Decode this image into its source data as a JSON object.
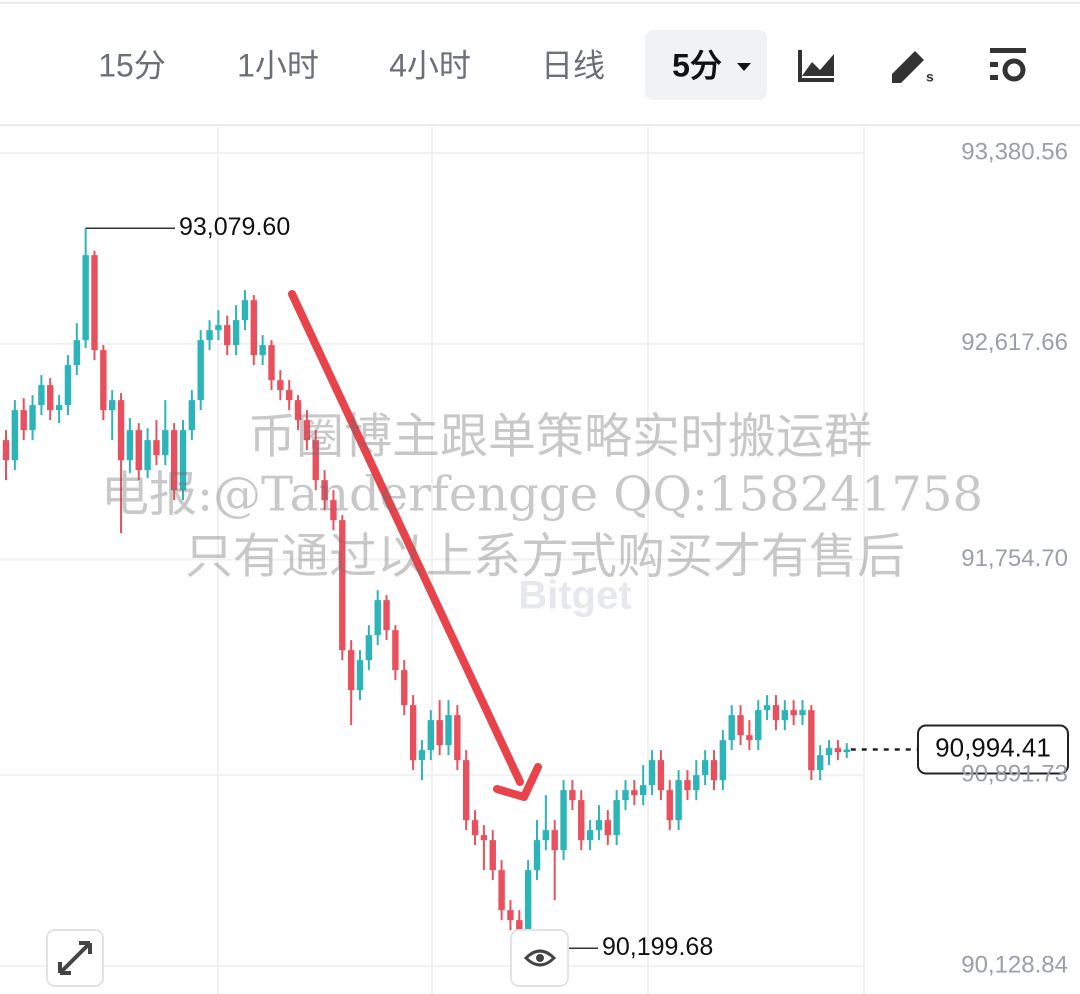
{
  "toolbar": {
    "tabs": [
      "15分",
      "1小时",
      "4小时",
      "日线"
    ],
    "active": "5分"
  },
  "watermark": {
    "lines": [
      "币圈博主跟单策略实时搬运群",
      "电报:@Tanderfengge QQ:158241758",
      "只有通过以上系方式购买才有售后"
    ],
    "brand": "Bitget"
  },
  "chart_data": {
    "type": "candlestick",
    "up_color": "#2bb5b8",
    "down_color": "#e9505e",
    "ylim": [
      90016.56,
      93492.56
    ],
    "yticks": [
      {
        "value": 93380.56,
        "label": "93,380.56"
      },
      {
        "value": 92617.66,
        "label": "92,617.66"
      },
      {
        "value": 91754.7,
        "label": "91,754.70"
      },
      {
        "value": 90891.73,
        "label": "90,891.73"
      },
      {
        "value": 90128.84,
        "label": "90,128.84"
      }
    ],
    "grid": true,
    "max_label": {
      "value": 93079.6,
      "label": "93,079.60"
    },
    "min_label": {
      "value": 90199.68,
      "label": "90,199.68"
    },
    "last_price": {
      "value": 90994.41,
      "label": "90,994.41"
    },
    "open": [
      92232,
      92152,
      92352,
      92272,
      92372,
      92452,
      92352,
      92372,
      92532,
      92632,
      92972,
      92592,
      92352,
      92392,
      92152,
      92272,
      92112,
      92232,
      92172,
      92272,
      92032,
      92272,
      92392,
      92632,
      92672,
      92692,
      92612,
      92712,
      92792,
      92572,
      92612,
      92472,
      92432,
      92392,
      92312,
      92232,
      92072,
      91992,
      91912,
      91392,
      91232,
      91352,
      91452,
      91592,
      91472,
      91312,
      91172,
      90952,
      90992,
      91112,
      91012,
      91132,
      90952,
      90712,
      90652,
      90632,
      90512,
      90352,
      90312,
      90272,
      90512,
      90632,
      90672,
      90592,
      90832,
      90792,
      90632,
      90672,
      90712,
      90652,
      90792,
      90832,
      90812,
      90852,
      90952,
      90832,
      90712,
      90872,
      90832,
      90892,
      90952,
      90872,
      91032,
      91132,
      91052,
      91032,
      91152,
      91172,
      91112,
      91152,
      91132,
      91152,
      90912,
      90972,
      91000,
      90984
    ],
    "high": [
      92272,
      92392,
      92400,
      92412,
      92492,
      92480,
      92412,
      92572,
      92700,
      93079.6,
      92990,
      92612,
      92432,
      92420,
      92320,
      92300,
      92280,
      92312,
      92392,
      92300,
      92312,
      92432,
      92672,
      92712,
      92752,
      92730,
      92772,
      92832,
      92812,
      92652,
      92632,
      92512,
      92472,
      92412,
      92352,
      92272,
      92112,
      92032,
      91932,
      91432,
      91392,
      91492,
      91632,
      91612,
      91492,
      91352,
      91212,
      91032,
      91152,
      91192,
      91192,
      91172,
      90992,
      90752,
      90692,
      90672,
      90552,
      90392,
      90352,
      90552,
      90712,
      90812,
      90712,
      90872,
      90872,
      90832,
      90712,
      90772,
      90752,
      90832,
      90872,
      90872,
      90932,
      90992,
      90992,
      90872,
      90912,
      90912,
      90952,
      90992,
      90992,
      91072,
      91172,
      91172,
      91112,
      91192,
      91212,
      91212,
      91192,
      91192,
      91192,
      91172,
      91012,
      91032,
      91032,
      91020
    ],
    "low": [
      92072,
      92112,
      92232,
      92232,
      92332,
      92312,
      92300,
      92332,
      92492,
      92600,
      92552,
      92312,
      92232,
      91860,
      92100,
      92072,
      92080,
      92132,
      92132,
      91992,
      91992,
      92232,
      92352,
      92592,
      92632,
      92572,
      92572,
      92672,
      92532,
      92532,
      92432,
      92392,
      92352,
      92272,
      92192,
      92032,
      91952,
      91872,
      91352,
      91092,
      91192,
      91312,
      91412,
      91432,
      91272,
      91132,
      90912,
      90872,
      90952,
      90972,
      90972,
      90912,
      90672,
      90612,
      90512,
      90472,
      90312,
      90272,
      90232,
      90199.68,
      90472,
      90592,
      90392,
      90552,
      90752,
      90592,
      90592,
      90632,
      90612,
      90612,
      90752,
      90772,
      90772,
      90812,
      90792,
      90672,
      90672,
      90792,
      90792,
      90852,
      90832,
      90832,
      90992,
      91012,
      90992,
      90992,
      91112,
      91072,
      91072,
      91092,
      91092,
      90872,
      90872,
      90932,
      90952,
      90960
    ],
    "close": [
      92152,
      92352,
      92272,
      92372,
      92452,
      92352,
      92372,
      92532,
      92632,
      92972,
      92592,
      92352,
      92392,
      92152,
      92272,
      92112,
      92232,
      92172,
      92272,
      92032,
      92272,
      92392,
      92632,
      92672,
      92692,
      92612,
      92712,
      92792,
      92572,
      92612,
      92472,
      92432,
      92392,
      92312,
      92232,
      92072,
      91992,
      91912,
      91392,
      91232,
      91352,
      91452,
      91592,
      91472,
      91312,
      91172,
      90952,
      90992,
      91112,
      91012,
      91132,
      90952,
      90712,
      90652,
      90632,
      90512,
      90352,
      90312,
      90272,
      90512,
      90632,
      90672,
      90592,
      90832,
      90792,
      90632,
      90672,
      90712,
      90652,
      90792,
      90832,
      90812,
      90852,
      90952,
      90832,
      90712,
      90872,
      90832,
      90892,
      90952,
      90872,
      91032,
      91132,
      91052,
      91032,
      91152,
      91172,
      91112,
      91152,
      91132,
      91152,
      90912,
      90972,
      91000,
      90984,
      90994.41
    ]
  }
}
